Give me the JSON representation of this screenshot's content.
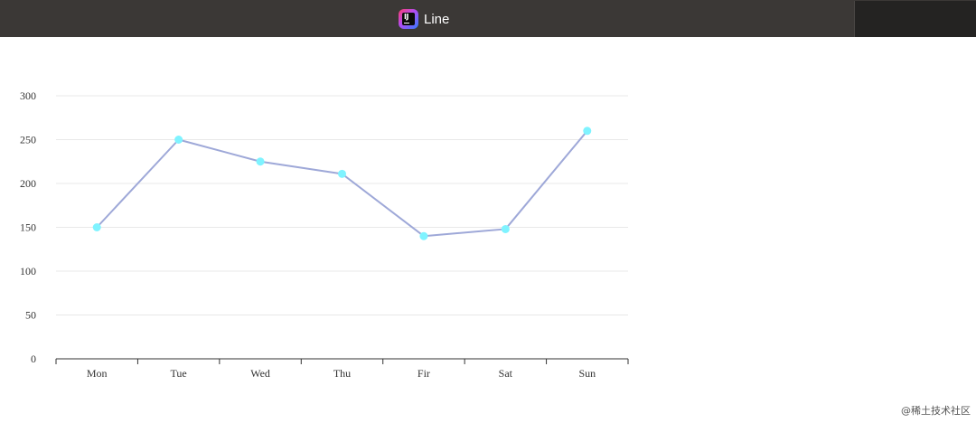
{
  "window": {
    "title": "Line"
  },
  "watermark": "@稀土技术社区",
  "colors": {
    "line": "#9ea8d8",
    "point": "#7ff3ff",
    "grid": "#e8e8e8",
    "axis": "#333333"
  },
  "chart_data": {
    "type": "line",
    "categories": [
      "Mon",
      "Tue",
      "Wed",
      "Thu",
      "Fir",
      "Sat",
      "Sun"
    ],
    "series": [
      {
        "values": [
          150,
          250,
          225,
          211,
          140,
          148,
          260
        ]
      }
    ],
    "ylim": [
      0,
      300
    ],
    "yticks": [
      0,
      50,
      100,
      150,
      200,
      250,
      300
    ],
    "grid": true,
    "legend": "none",
    "title": "",
    "xlabel": "",
    "ylabel": ""
  }
}
